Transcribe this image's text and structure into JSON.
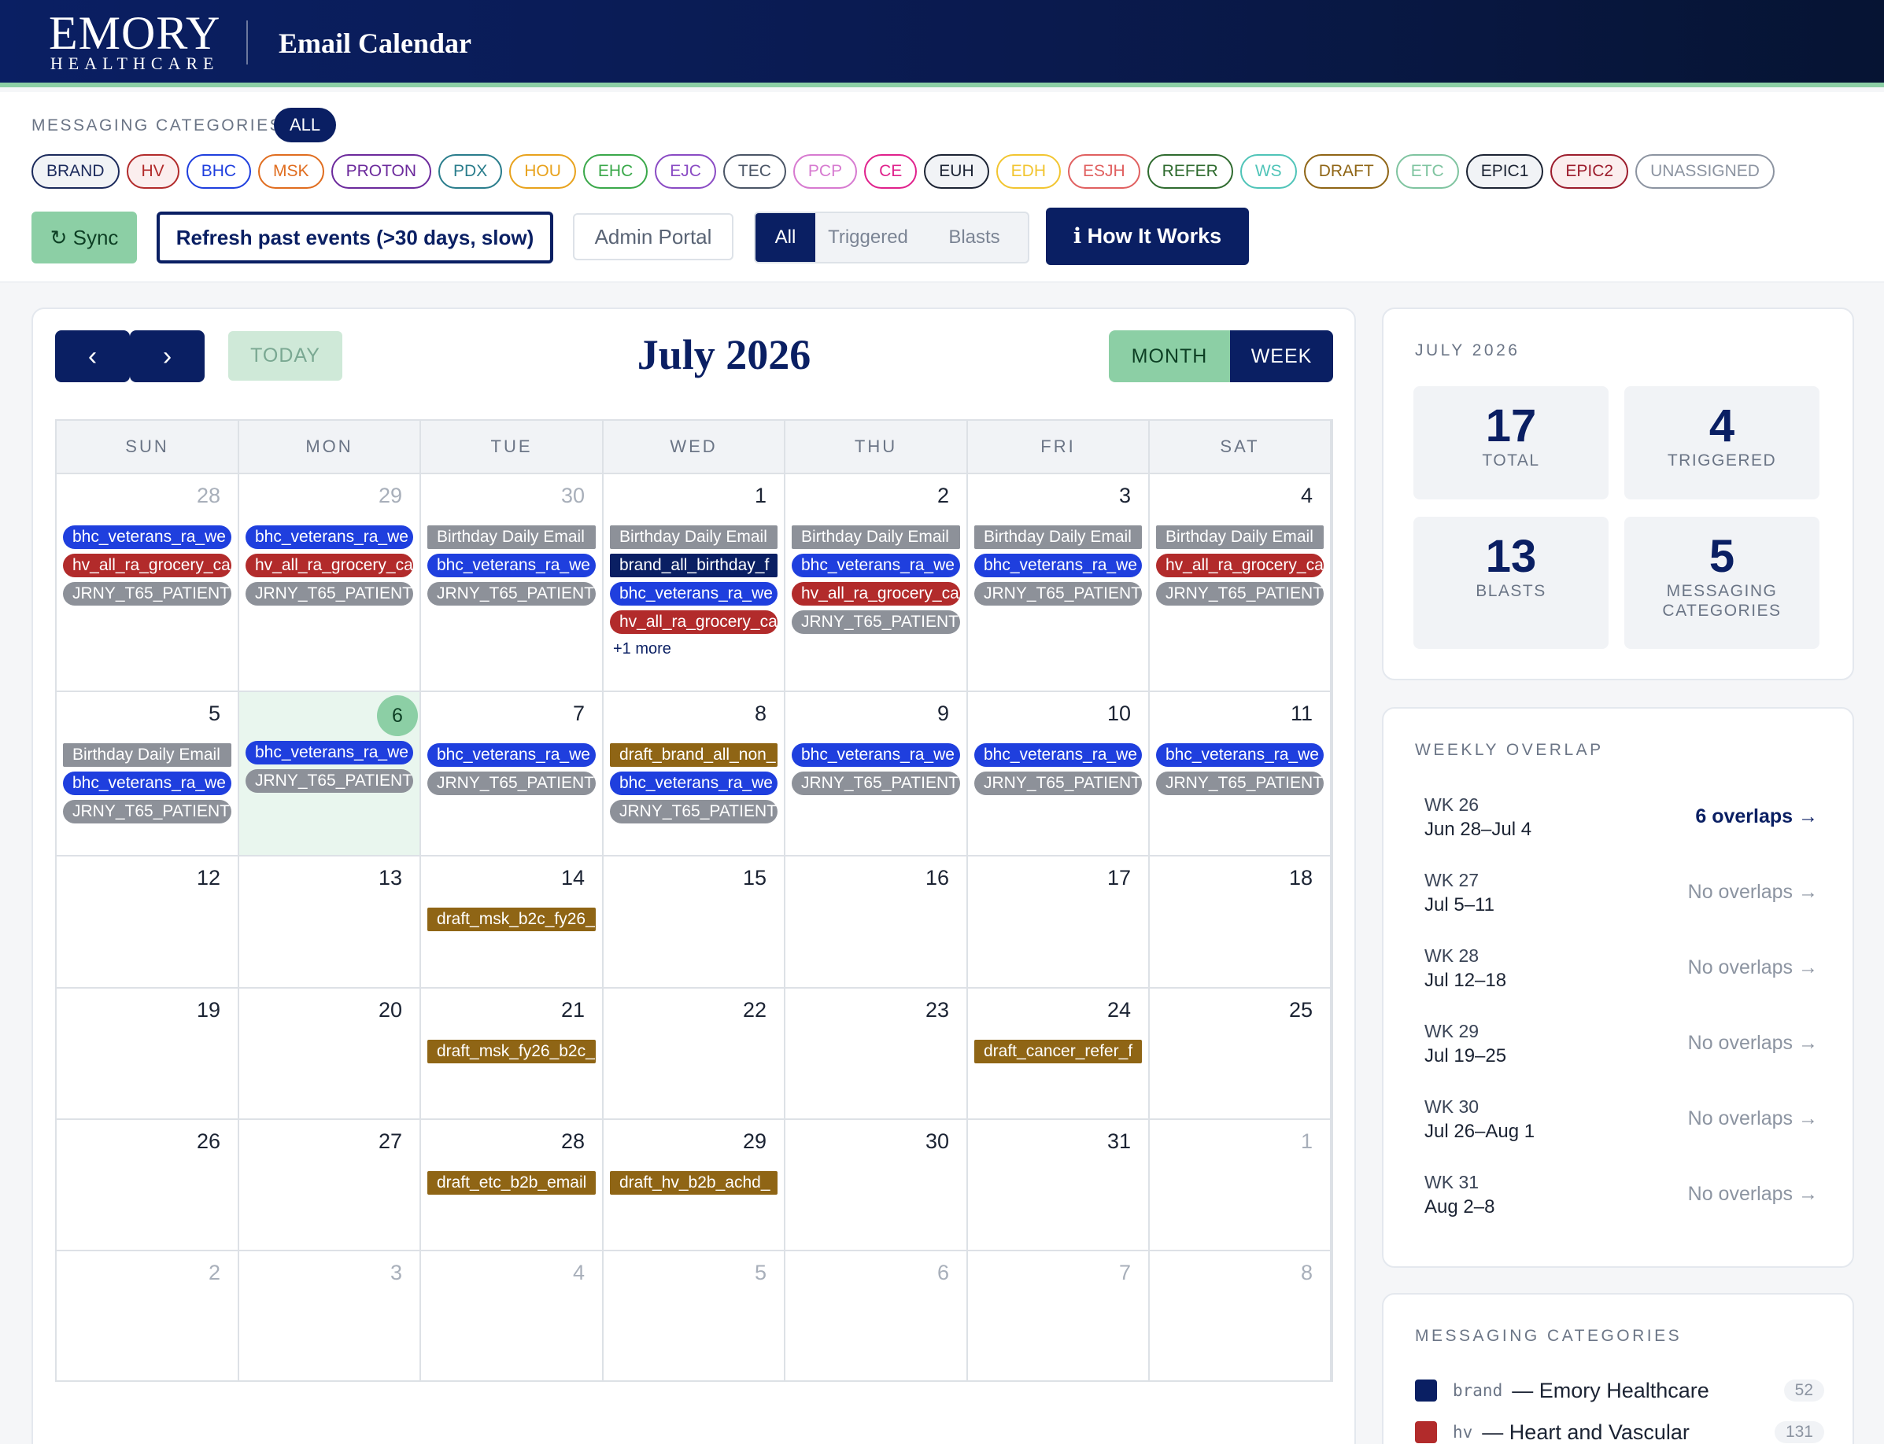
{
  "header": {
    "logo_main": "EMORY",
    "logo_sub": "HEALTHCARE",
    "title": "Email Calendar"
  },
  "filters": {
    "label": "MESSAGING CATEGORIES",
    "all_label": "ALL",
    "chips": [
      {
        "label": "BRAND",
        "color": "#1b2a5c"
      },
      {
        "label": "HV",
        "color": "#b22b2b"
      },
      {
        "label": "BHC",
        "color": "#1f3fde"
      },
      {
        "label": "MSK",
        "color": "#e06d1f"
      },
      {
        "label": "PROTON",
        "color": "#6c2a9c"
      },
      {
        "label": "PDX",
        "color": "#2a7d8c"
      },
      {
        "label": "HOU",
        "color": "#e8a21c"
      },
      {
        "label": "EHC",
        "color": "#3aa84a"
      },
      {
        "label": "EJC",
        "color": "#8a4bc4"
      },
      {
        "label": "TEC",
        "color": "#4a5566"
      },
      {
        "label": "PCP",
        "color": "#d77ad0"
      },
      {
        "label": "CE",
        "color": "#e0218c"
      },
      {
        "label": "EUH",
        "color": "#1b2333"
      },
      {
        "label": "EDH",
        "color": "#f2c530"
      },
      {
        "label": "ESJH",
        "color": "#e06060"
      },
      {
        "label": "REFER",
        "color": "#2f6b2f"
      },
      {
        "label": "WS",
        "color": "#4fc4b8"
      },
      {
        "label": "DRAFT",
        "color": "#8f6515"
      },
      {
        "label": "ETC",
        "color": "#7fc4a0"
      },
      {
        "label": "EPIC1",
        "color": "#1b2333"
      },
      {
        "label": "EPIC2",
        "color": "#9c1c2c"
      },
      {
        "label": "UNASSIGNED",
        "color": "#8c94a1"
      }
    ]
  },
  "toolbar": {
    "sync": "↻ Sync",
    "refresh": "Refresh past events (>30 days, slow)",
    "admin": "Admin Portal",
    "seg_all": "All",
    "seg_triggered": "Triggered",
    "seg_blasts": "Blasts",
    "how": "ℹ How It Works"
  },
  "calendar": {
    "prev": "‹",
    "next": "›",
    "today": "TODAY",
    "month_title": "July 2026",
    "view_month": "MONTH",
    "view_week": "WEEK",
    "weekdays": [
      "SUN",
      "MON",
      "TUE",
      "WED",
      "THU",
      "FRI",
      "SAT"
    ],
    "weeks": [
      [
        {
          "day": "28",
          "muted": true,
          "events": [
            {
              "t": "bhc",
              "label": "bhc_veterans_ra_we"
            },
            {
              "t": "hv",
              "label": "hv_all_ra_grocery_ca"
            },
            {
              "t": "jrny",
              "label": "JRNY_T65_PATIENT"
            }
          ]
        },
        {
          "day": "29",
          "muted": true,
          "events": [
            {
              "t": "bhc",
              "label": "bhc_veterans_ra_we"
            },
            {
              "t": "hv",
              "label": "hv_all_ra_grocery_ca"
            },
            {
              "t": "jrny",
              "label": "JRNY_T65_PATIENT"
            }
          ]
        },
        {
          "day": "30",
          "muted": true,
          "events": [
            {
              "t": "bday",
              "label": "Birthday Daily Email"
            },
            {
              "t": "bhc",
              "label": "bhc_veterans_ra_we"
            },
            {
              "t": "jrny",
              "label": "JRNY_T65_PATIENT"
            }
          ]
        },
        {
          "day": "1",
          "events": [
            {
              "t": "bday",
              "label": "Birthday Daily Email"
            },
            {
              "t": "brand",
              "label": "brand_all_birthday_f"
            },
            {
              "t": "bhc",
              "label": "bhc_veterans_ra_we"
            },
            {
              "t": "hv",
              "label": "hv_all_ra_grocery_ca"
            }
          ],
          "more": "+1 more"
        },
        {
          "day": "2",
          "events": [
            {
              "t": "bday",
              "label": "Birthday Daily Email"
            },
            {
              "t": "bhc",
              "label": "bhc_veterans_ra_we"
            },
            {
              "t": "hv",
              "label": "hv_all_ra_grocery_ca"
            },
            {
              "t": "jrny",
              "label": "JRNY_T65_PATIENT"
            }
          ]
        },
        {
          "day": "3",
          "events": [
            {
              "t": "bday",
              "label": "Birthday Daily Email"
            },
            {
              "t": "bhc",
              "label": "bhc_veterans_ra_we"
            },
            {
              "t": "jrny",
              "label": "JRNY_T65_PATIENT"
            }
          ]
        },
        {
          "day": "4",
          "events": [
            {
              "t": "bday",
              "label": "Birthday Daily Email"
            },
            {
              "t": "hv",
              "label": "hv_all_ra_grocery_ca"
            },
            {
              "t": "jrny",
              "label": "JRNY_T65_PATIENT"
            }
          ]
        }
      ],
      [
        {
          "day": "5",
          "events": [
            {
              "t": "bday",
              "label": "Birthday Daily Email"
            },
            {
              "t": "bhc",
              "label": "bhc_veterans_ra_we"
            },
            {
              "t": "jrny",
              "label": "JRNY_T65_PATIENT"
            }
          ]
        },
        {
          "day": "6",
          "today": true,
          "events": [
            {
              "t": "bhc",
              "label": "bhc_veterans_ra_we"
            },
            {
              "t": "jrny",
              "label": "JRNY_T65_PATIENT"
            }
          ]
        },
        {
          "day": "7",
          "events": [
            {
              "t": "bhc",
              "label": "bhc_veterans_ra_we"
            },
            {
              "t": "jrny",
              "label": "JRNY_T65_PATIENT"
            }
          ]
        },
        {
          "day": "8",
          "events": [
            {
              "t": "draft",
              "label": "draft_brand_all_non_"
            },
            {
              "t": "bhc",
              "label": "bhc_veterans_ra_we"
            },
            {
              "t": "jrny",
              "label": "JRNY_T65_PATIENT"
            }
          ]
        },
        {
          "day": "9",
          "events": [
            {
              "t": "bhc",
              "label": "bhc_veterans_ra_we"
            },
            {
              "t": "jrny",
              "label": "JRNY_T65_PATIENT"
            }
          ]
        },
        {
          "day": "10",
          "events": [
            {
              "t": "bhc",
              "label": "bhc_veterans_ra_we"
            },
            {
              "t": "jrny",
              "label": "JRNY_T65_PATIENT"
            }
          ]
        },
        {
          "day": "11",
          "events": [
            {
              "t": "bhc",
              "label": "bhc_veterans_ra_we"
            },
            {
              "t": "jrny",
              "label": "JRNY_T65_PATIENT"
            }
          ]
        }
      ],
      [
        {
          "day": "12",
          "events": []
        },
        {
          "day": "13",
          "events": []
        },
        {
          "day": "14",
          "events": [
            {
              "t": "draft",
              "label": "draft_msk_b2c_fy26_"
            }
          ]
        },
        {
          "day": "15",
          "events": []
        },
        {
          "day": "16",
          "events": []
        },
        {
          "day": "17",
          "events": []
        },
        {
          "day": "18",
          "events": []
        }
      ],
      [
        {
          "day": "19",
          "events": []
        },
        {
          "day": "20",
          "events": []
        },
        {
          "day": "21",
          "events": [
            {
              "t": "draft",
              "label": "draft_msk_fy26_b2c_"
            }
          ]
        },
        {
          "day": "22",
          "events": []
        },
        {
          "day": "23",
          "events": []
        },
        {
          "day": "24",
          "events": [
            {
              "t": "draft",
              "label": "draft_cancer_refer_f"
            }
          ]
        },
        {
          "day": "25",
          "events": []
        }
      ],
      [
        {
          "day": "26",
          "events": []
        },
        {
          "day": "27",
          "events": []
        },
        {
          "day": "28",
          "events": [
            {
              "t": "draft",
              "label": "draft_etc_b2b_email"
            }
          ]
        },
        {
          "day": "29",
          "events": [
            {
              "t": "draft",
              "label": "draft_hv_b2b_achd_"
            }
          ]
        },
        {
          "day": "30",
          "events": []
        },
        {
          "day": "31",
          "events": []
        },
        {
          "day": "1",
          "muted": true,
          "events": []
        }
      ],
      [
        {
          "day": "2",
          "muted": true,
          "events": []
        },
        {
          "day": "3",
          "muted": true,
          "events": []
        },
        {
          "day": "4",
          "muted": true,
          "events": []
        },
        {
          "day": "5",
          "muted": true,
          "events": []
        },
        {
          "day": "6",
          "muted": true,
          "events": []
        },
        {
          "day": "7",
          "muted": true,
          "events": []
        },
        {
          "day": "8",
          "muted": true,
          "events": []
        }
      ]
    ]
  },
  "summary": {
    "title": "JULY 2026",
    "stats": [
      {
        "value": "17",
        "label": "TOTAL"
      },
      {
        "value": "4",
        "label": "TRIGGERED"
      },
      {
        "value": "13",
        "label": "BLASTS"
      },
      {
        "value": "5",
        "label": "MESSAGING\nCATEGORIES"
      }
    ]
  },
  "overlap": {
    "title": "WEEKLY OVERLAP",
    "weeks": [
      {
        "wk": "WK 26",
        "range": "Jun 28–Jul 4",
        "status": "6 overlaps →",
        "hot": true
      },
      {
        "wk": "WK 27",
        "range": "Jul 5–11",
        "status": "No overlaps →",
        "hot": false
      },
      {
        "wk": "WK 28",
        "range": "Jul 12–18",
        "status": "No overlaps →",
        "hot": false
      },
      {
        "wk": "WK 29",
        "range": "Jul 19–25",
        "status": "No overlaps →",
        "hot": false
      },
      {
        "wk": "WK 30",
        "range": "Jul 26–Aug 1",
        "status": "No overlaps →",
        "hot": false
      },
      {
        "wk": "WK 31",
        "range": "Aug 2–8",
        "status": "No overlaps →",
        "hot": false
      }
    ]
  },
  "legend": {
    "title": "MESSAGING CATEGORIES",
    "items": [
      {
        "code": "brand",
        "name": "— Emory Healthcare",
        "count": "52",
        "color": "#0a1f63"
      },
      {
        "code": "hv",
        "name": "— Heart and Vascular",
        "count": "131",
        "color": "#b22b2b"
      }
    ]
  }
}
